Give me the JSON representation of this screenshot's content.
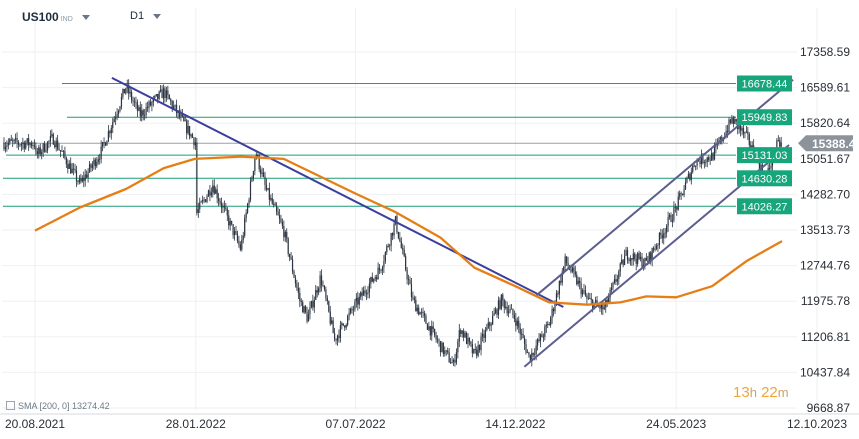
{
  "header": {
    "symbol": "US100",
    "symbol_suffix": "IND",
    "timeframe": "D1"
  },
  "indicator": {
    "label": "SMA [200, 0]",
    "value": "13274.42"
  },
  "countdown": {
    "hours": "13",
    "hours_unit": "h",
    "minutes": "22",
    "minutes_unit": "m"
  },
  "chart_data": {
    "type": "candlestick",
    "title": "",
    "xlabel": "",
    "ylabel": "",
    "ylim": [
      9280,
      17860
    ],
    "x_ticks": [
      "20.08.2021",
      "28.01.2022",
      "07.07.2022",
      "14.12.2022",
      "24.05.2023",
      "12.10.2023"
    ],
    "y_ticks": [
      9668.87,
      10437.84,
      11206.81,
      11975.78,
      12744.76,
      13513.73,
      14282.7,
      15051.67,
      15820.64,
      16589.61,
      17358.59
    ],
    "current_price": 15388.42,
    "horizontal_levels": [
      16678.44,
      15949.83,
      15131.03,
      14630.28,
      14026.27
    ],
    "price_path": [
      [
        "20.08.2021",
        15100
      ],
      [
        "2021-09-07",
        15500
      ],
      [
        "2021-10-04",
        14500
      ],
      [
        "2021-10-25",
        15200
      ],
      [
        "2021-11-19",
        16600
      ],
      [
        "2021-12-03",
        16000
      ],
      [
        "2021-12-27",
        16500
      ],
      [
        "28.01.2022",
        15400
      ],
      [
        "2022-01-27",
        13800
      ],
      [
        "2022-02-14",
        14500
      ],
      [
        "2022-03-14",
        13100
      ],
      [
        "2022-03-29",
        15200
      ],
      [
        "2022-04-08",
        14400
      ],
      [
        "2022-04-26",
        13500
      ],
      [
        "2022-05-12",
        12000
      ],
      [
        "2022-05-20",
        11600
      ],
      [
        "2022-06-02",
        12500
      ],
      [
        "2022-06-16",
        11150
      ],
      [
        "07.07.2022",
        11900
      ],
      [
        "2022-08-01",
        12700
      ],
      [
        "2022-08-16",
        13700
      ],
      [
        "2022-09-02",
        12000
      ],
      [
        "2022-09-30",
        11000
      ],
      [
        "2022-10-13",
        10600
      ],
      [
        "2022-10-20",
        11400
      ],
      [
        "2022-11-03",
        10800
      ],
      [
        "2022-11-30",
        12000
      ],
      [
        "14.12.2022",
        11600
      ],
      [
        "2022-12-28",
        10750
      ],
      [
        "2023-01-17",
        11500
      ],
      [
        "2023-02-02",
        12850
      ],
      [
        "2023-02-24",
        12000
      ],
      [
        "2023-03-13",
        11800
      ],
      [
        "2023-04-04",
        13000
      ],
      [
        "2023-04-24",
        12800
      ],
      [
        "24.05.2023",
        14000
      ],
      [
        "2023-06-12",
        15000
      ],
      [
        "2023-06-29",
        15100
      ],
      [
        "2023-07-19",
        15900
      ],
      [
        "2023-08-03",
        15500
      ],
      [
        "2023-08-22",
        14600
      ],
      [
        "2023-08-31",
        15300
      ],
      [
        "2023-09-07",
        15388.42
      ]
    ],
    "sma_200": [
      [
        "20.08.2021",
        13500
      ],
      [
        "2021-10-04",
        14000
      ],
      [
        "2021-11-19",
        14400
      ],
      [
        "2021-12-27",
        14850
      ],
      [
        "2022-01-27",
        15050
      ],
      [
        "2022-03-14",
        15100
      ],
      [
        "2022-04-26",
        15050
      ],
      [
        "07.07.2022",
        14300
      ],
      [
        "2022-08-16",
        13900
      ],
      [
        "2022-09-30",
        13350
      ],
      [
        "2022-11-03",
        12700
      ],
      [
        "14.12.2022",
        12300
      ],
      [
        "2023-01-17",
        11950
      ],
      [
        "2023-02-24",
        11900
      ],
      [
        "2023-03-29",
        11950
      ],
      [
        "2023-04-24",
        12080
      ],
      [
        "24.05.2023",
        12060
      ],
      [
        "2023-06-29",
        12300
      ],
      [
        "2023-08-03",
        12850
      ],
      [
        "2023-09-07",
        13274.42
      ]
    ],
    "trendlines": [
      {
        "role": "downtrend",
        "from": [
          "2021-11-05",
          16800
        ],
        "to": [
          "2023-01-31",
          11850
        ]
      },
      {
        "role": "channel-upper",
        "from": [
          "2023-01-04",
          12100
        ],
        "to": [
          "2023-09-18",
          16760
        ]
      },
      {
        "role": "channel-lower",
        "from": [
          "2022-12-23",
          10560
        ],
        "to": [
          "2023-09-14",
          15350
        ]
      }
    ]
  },
  "colors": {
    "candles": "#2b3440",
    "sma": "#e67e16",
    "trend": "#3a3f9e",
    "channel": "#5c5f8e",
    "level_line": "#1c9e76",
    "level_tag": "#17a57b",
    "price_tag": "#8c939b",
    "grid": "#eef0f2",
    "axis_text": "#2a2f36"
  }
}
